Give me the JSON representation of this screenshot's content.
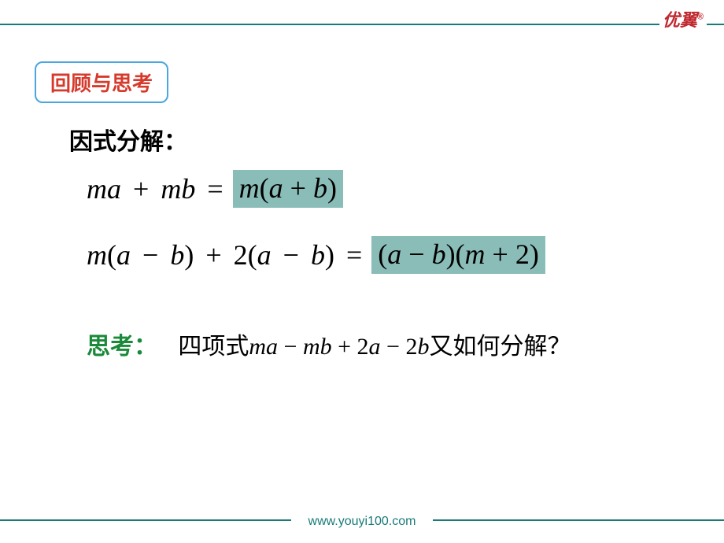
{
  "colors": {
    "rule": "#1a7a7a",
    "logo": "#c0282f",
    "badge_border": "#4aa6e0",
    "badge_text": "#d63a2c",
    "highlight_bg": "#8abdb8",
    "think_label": "#1a8a3a",
    "text": "#000000",
    "background": "#ffffff"
  },
  "logo": {
    "text": "优翼",
    "reg": "®"
  },
  "badge": {
    "label": "回顾与思考"
  },
  "heading": "因式分解：",
  "equations": {
    "eq1": {
      "lhs_parts": [
        "m",
        "a",
        "+",
        "m",
        "b",
        "="
      ],
      "rhs": "m(a + b)"
    },
    "eq2": {
      "lhs_parts": [
        "m",
        "(",
        "a",
        "−",
        "b",
        ")",
        "+",
        "2",
        "(",
        "a",
        "−",
        "b",
        ")",
        "="
      ],
      "rhs": "(a − b)(m + 2)"
    }
  },
  "think": {
    "label": "思考：",
    "pre_text": "四项式",
    "expr_parts": [
      "m",
      "a",
      "−",
      "m",
      "b",
      "+",
      "2",
      "a",
      "−",
      "2",
      "b"
    ],
    "post_text": "又如何分解？"
  },
  "footer": {
    "url": "www.youyi100.com"
  },
  "fontsize": {
    "badge": 26,
    "heading": 30,
    "equation": 36,
    "think": 30,
    "footer": 16,
    "logo": 22
  }
}
